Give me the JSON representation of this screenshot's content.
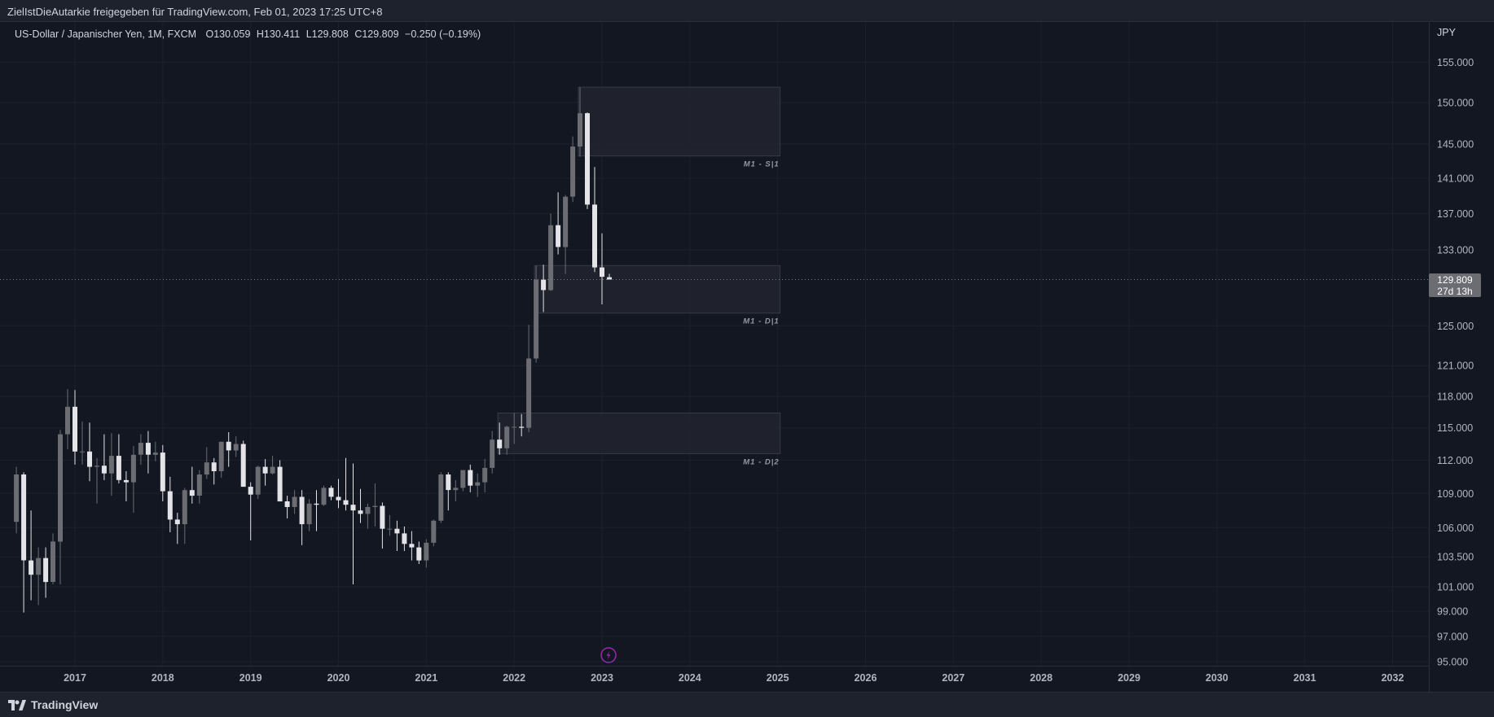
{
  "header": {
    "share_text": "ZielIstDieAutarkie freigegeben für TradingView.com, Feb 01, 2023 17:25 UTC+8"
  },
  "legend": {
    "symbol": "US-Dollar / Japanischer Yen, 1M, FXCM",
    "open": "O130.059",
    "high": "H130.411",
    "low": "L129.808",
    "close": "C129.809",
    "change": "−0.250 (−0.19%)"
  },
  "currency": "JPY",
  "last_price": {
    "value": "129.809",
    "countdown": "27d 13h"
  },
  "footer": {
    "brand": "TradingView"
  },
  "colors": {
    "background": "#131722",
    "up": "#6b6d73",
    "down": "#e3e3e8",
    "zone": "#22252f",
    "grid": "#1c202b"
  },
  "chart_data": {
    "type": "candlestick",
    "symbol": "USDJPY",
    "timeframe": "1M",
    "x_axis": {
      "tick_labels": [
        "2017",
        "2018",
        "2019",
        "2020",
        "2021",
        "2022",
        "2023",
        "2024",
        "2025",
        "2026",
        "2027",
        "2028",
        "2029",
        "2030",
        "2031",
        "2032"
      ]
    },
    "y_axis": {
      "tick_labels": [
        "155.000",
        "150.000",
        "145.000",
        "141.000",
        "137.000",
        "133.000",
        "129.809",
        "125.000",
        "121.000",
        "118.000",
        "115.000",
        "112.000",
        "109.000",
        "106.000",
        "103.500",
        "101.000",
        "99.000",
        "97.000",
        "95.000"
      ],
      "range": [
        94,
        160
      ],
      "scale": "log"
    },
    "zones": [
      {
        "label": "M1 - S|1",
        "start": "2022-10",
        "end": "2025-01",
        "low": 143.6,
        "high": 151.9
      },
      {
        "label": "M1 - D|1",
        "start": "2022-04",
        "end": "2025-01",
        "low": 126.3,
        "high": 131.3
      },
      {
        "label": "M1 - D|2",
        "start": "2021-11",
        "end": "2025-01",
        "low": 112.6,
        "high": 116.4
      }
    ],
    "candles": [
      {
        "t": "2016-05",
        "o": 106.5,
        "h": 111.4,
        "l": 105.5,
        "c": 110.7
      },
      {
        "t": "2016-06",
        "o": 110.7,
        "h": 110.9,
        "l": 98.9,
        "c": 103.2
      },
      {
        "t": "2016-07",
        "o": 103.2,
        "h": 107.5,
        "l": 99.9,
        "c": 102.0
      },
      {
        "t": "2016-08",
        "o": 102.0,
        "h": 104.3,
        "l": 99.5,
        "c": 103.4
      },
      {
        "t": "2016-09",
        "o": 103.4,
        "h": 104.3,
        "l": 100.1,
        "c": 101.4
      },
      {
        "t": "2016-10",
        "o": 101.4,
        "h": 105.5,
        "l": 101.2,
        "c": 104.8
      },
      {
        "t": "2016-11",
        "o": 104.8,
        "h": 114.8,
        "l": 101.2,
        "c": 114.4
      },
      {
        "t": "2016-12",
        "o": 114.4,
        "h": 118.7,
        "l": 113.0,
        "c": 117.0
      },
      {
        "t": "2017-01",
        "o": 117.0,
        "h": 118.6,
        "l": 111.6,
        "c": 112.8
      },
      {
        "t": "2017-02",
        "o": 112.8,
        "h": 115.6,
        "l": 111.6,
        "c": 112.8
      },
      {
        "t": "2017-03",
        "o": 112.8,
        "h": 115.5,
        "l": 110.1,
        "c": 111.4
      },
      {
        "t": "2017-04",
        "o": 111.4,
        "h": 112.2,
        "l": 108.1,
        "c": 111.5
      },
      {
        "t": "2017-05",
        "o": 111.5,
        "h": 114.4,
        "l": 110.2,
        "c": 110.8
      },
      {
        "t": "2017-06",
        "o": 110.8,
        "h": 114.5,
        "l": 108.8,
        "c": 112.4
      },
      {
        "t": "2017-07",
        "o": 112.4,
        "h": 114.4,
        "l": 109.9,
        "c": 110.2
      },
      {
        "t": "2017-08",
        "o": 110.2,
        "h": 111.0,
        "l": 108.3,
        "c": 110.0
      },
      {
        "t": "2017-09",
        "o": 110.0,
        "h": 113.3,
        "l": 107.3,
        "c": 112.5
      },
      {
        "t": "2017-10",
        "o": 112.5,
        "h": 114.4,
        "l": 111.6,
        "c": 113.6
      },
      {
        "t": "2017-11",
        "o": 113.6,
        "h": 114.7,
        "l": 110.8,
        "c": 112.5
      },
      {
        "t": "2017-12",
        "o": 112.5,
        "h": 113.7,
        "l": 111.9,
        "c": 112.7
      },
      {
        "t": "2018-01",
        "o": 112.7,
        "h": 113.4,
        "l": 108.3,
        "c": 109.2
      },
      {
        "t": "2018-02",
        "o": 109.2,
        "h": 110.5,
        "l": 105.6,
        "c": 106.7
      },
      {
        "t": "2018-03",
        "o": 106.7,
        "h": 107.3,
        "l": 104.6,
        "c": 106.3
      },
      {
        "t": "2018-04",
        "o": 106.3,
        "h": 109.5,
        "l": 104.6,
        "c": 109.3
      },
      {
        "t": "2018-05",
        "o": 109.3,
        "h": 111.4,
        "l": 108.1,
        "c": 108.8
      },
      {
        "t": "2018-06",
        "o": 108.8,
        "h": 111.1,
        "l": 108.1,
        "c": 110.7
      },
      {
        "t": "2018-07",
        "o": 110.7,
        "h": 113.2,
        "l": 110.3,
        "c": 111.8
      },
      {
        "t": "2018-08",
        "o": 111.8,
        "h": 112.2,
        "l": 109.8,
        "c": 111.0
      },
      {
        "t": "2018-09",
        "o": 111.0,
        "h": 113.7,
        "l": 110.4,
        "c": 113.7
      },
      {
        "t": "2018-10",
        "o": 113.7,
        "h": 114.6,
        "l": 111.4,
        "c": 112.9
      },
      {
        "t": "2018-11",
        "o": 112.9,
        "h": 114.2,
        "l": 112.3,
        "c": 113.5
      },
      {
        "t": "2018-12",
        "o": 113.5,
        "h": 113.8,
        "l": 109.6,
        "c": 109.6
      },
      {
        "t": "2019-01",
        "o": 109.6,
        "h": 110.0,
        "l": 104.9,
        "c": 108.9
      },
      {
        "t": "2019-02",
        "o": 108.9,
        "h": 111.5,
        "l": 108.5,
        "c": 111.4
      },
      {
        "t": "2019-03",
        "o": 111.4,
        "h": 112.1,
        "l": 109.7,
        "c": 110.8
      },
      {
        "t": "2019-04",
        "o": 110.8,
        "h": 112.4,
        "l": 110.7,
        "c": 111.4
      },
      {
        "t": "2019-05",
        "o": 111.4,
        "h": 112.0,
        "l": 108.3,
        "c": 108.3
      },
      {
        "t": "2019-06",
        "o": 108.3,
        "h": 108.8,
        "l": 106.8,
        "c": 107.8
      },
      {
        "t": "2019-07",
        "o": 107.8,
        "h": 109.3,
        "l": 107.2,
        "c": 108.7
      },
      {
        "t": "2019-08",
        "o": 108.7,
        "h": 109.3,
        "l": 104.5,
        "c": 106.3
      },
      {
        "t": "2019-09",
        "o": 106.3,
        "h": 108.5,
        "l": 105.7,
        "c": 108.1
      },
      {
        "t": "2019-10",
        "o": 108.1,
        "h": 109.3,
        "l": 105.7,
        "c": 108.0
      },
      {
        "t": "2019-11",
        "o": 108.0,
        "h": 109.7,
        "l": 107.9,
        "c": 109.5
      },
      {
        "t": "2019-12",
        "o": 109.5,
        "h": 109.7,
        "l": 108.4,
        "c": 108.7
      },
      {
        "t": "2020-01",
        "o": 108.7,
        "h": 110.3,
        "l": 107.7,
        "c": 108.4
      },
      {
        "t": "2020-02",
        "o": 108.4,
        "h": 112.2,
        "l": 107.5,
        "c": 108.0
      },
      {
        "t": "2020-03",
        "o": 108.0,
        "h": 111.7,
        "l": 101.2,
        "c": 107.5
      },
      {
        "t": "2020-04",
        "o": 107.5,
        "h": 109.4,
        "l": 106.4,
        "c": 107.2
      },
      {
        "t": "2020-05",
        "o": 107.2,
        "h": 108.1,
        "l": 105.9,
        "c": 107.8
      },
      {
        "t": "2020-06",
        "o": 107.8,
        "h": 109.9,
        "l": 106.1,
        "c": 107.9
      },
      {
        "t": "2020-07",
        "o": 107.9,
        "h": 108.2,
        "l": 104.2,
        "c": 105.9
      },
      {
        "t": "2020-08",
        "o": 105.9,
        "h": 107.1,
        "l": 105.3,
        "c": 105.9
      },
      {
        "t": "2020-09",
        "o": 105.9,
        "h": 106.6,
        "l": 104.0,
        "c": 105.5
      },
      {
        "t": "2020-10",
        "o": 105.5,
        "h": 106.1,
        "l": 104.0,
        "c": 104.6
      },
      {
        "t": "2020-11",
        "o": 104.6,
        "h": 105.7,
        "l": 103.2,
        "c": 104.3
      },
      {
        "t": "2020-12",
        "o": 104.3,
        "h": 104.8,
        "l": 102.9,
        "c": 103.2
      },
      {
        "t": "2021-01",
        "o": 103.2,
        "h": 105.0,
        "l": 102.6,
        "c": 104.7
      },
      {
        "t": "2021-02",
        "o": 104.7,
        "h": 106.7,
        "l": 104.4,
        "c": 106.6
      },
      {
        "t": "2021-03",
        "o": 106.6,
        "h": 110.9,
        "l": 106.4,
        "c": 110.7
      },
      {
        "t": "2021-04",
        "o": 110.7,
        "h": 110.9,
        "l": 107.5,
        "c": 109.3
      },
      {
        "t": "2021-05",
        "o": 109.3,
        "h": 110.2,
        "l": 108.3,
        "c": 109.5
      },
      {
        "t": "2021-06",
        "o": 109.5,
        "h": 111.1,
        "l": 109.2,
        "c": 111.1
      },
      {
        "t": "2021-07",
        "o": 111.1,
        "h": 111.6,
        "l": 109.1,
        "c": 109.7
      },
      {
        "t": "2021-08",
        "o": 109.7,
        "h": 110.8,
        "l": 108.7,
        "c": 110.0
      },
      {
        "t": "2021-09",
        "o": 110.0,
        "h": 112.1,
        "l": 109.1,
        "c": 111.3
      },
      {
        "t": "2021-10",
        "o": 111.3,
        "h": 114.7,
        "l": 110.8,
        "c": 113.9
      },
      {
        "t": "2021-11",
        "o": 113.9,
        "h": 115.5,
        "l": 112.5,
        "c": 113.1
      },
      {
        "t": "2021-12",
        "o": 113.1,
        "h": 115.2,
        "l": 112.5,
        "c": 115.1
      },
      {
        "t": "2022-01",
        "o": 115.1,
        "h": 116.4,
        "l": 113.5,
        "c": 115.1
      },
      {
        "t": "2022-02",
        "o": 115.1,
        "h": 116.3,
        "l": 114.2,
        "c": 115.0
      },
      {
        "t": "2022-03",
        "o": 115.0,
        "h": 125.1,
        "l": 114.6,
        "c": 121.7
      },
      {
        "t": "2022-04",
        "o": 121.7,
        "h": 131.3,
        "l": 121.3,
        "c": 129.8
      },
      {
        "t": "2022-05",
        "o": 129.8,
        "h": 131.4,
        "l": 126.4,
        "c": 128.7
      },
      {
        "t": "2022-06",
        "o": 128.7,
        "h": 137.0,
        "l": 128.6,
        "c": 135.7
      },
      {
        "t": "2022-07",
        "o": 135.7,
        "h": 139.4,
        "l": 132.5,
        "c": 133.3
      },
      {
        "t": "2022-08",
        "o": 133.3,
        "h": 139.1,
        "l": 130.4,
        "c": 138.9
      },
      {
        "t": "2022-09",
        "o": 138.9,
        "h": 145.9,
        "l": 138.3,
        "c": 144.7
      },
      {
        "t": "2022-10",
        "o": 144.7,
        "h": 151.9,
        "l": 143.5,
        "c": 148.7
      },
      {
        "t": "2022-11",
        "o": 148.7,
        "h": 148.8,
        "l": 137.5,
        "c": 138.0
      },
      {
        "t": "2022-12",
        "o": 138.0,
        "h": 142.3,
        "l": 130.6,
        "c": 131.1
      },
      {
        "t": "2023-01",
        "o": 131.1,
        "h": 134.8,
        "l": 127.2,
        "c": 130.1
      },
      {
        "t": "2023-02",
        "o": 130.059,
        "h": 130.411,
        "l": 129.808,
        "c": 129.809
      }
    ]
  }
}
